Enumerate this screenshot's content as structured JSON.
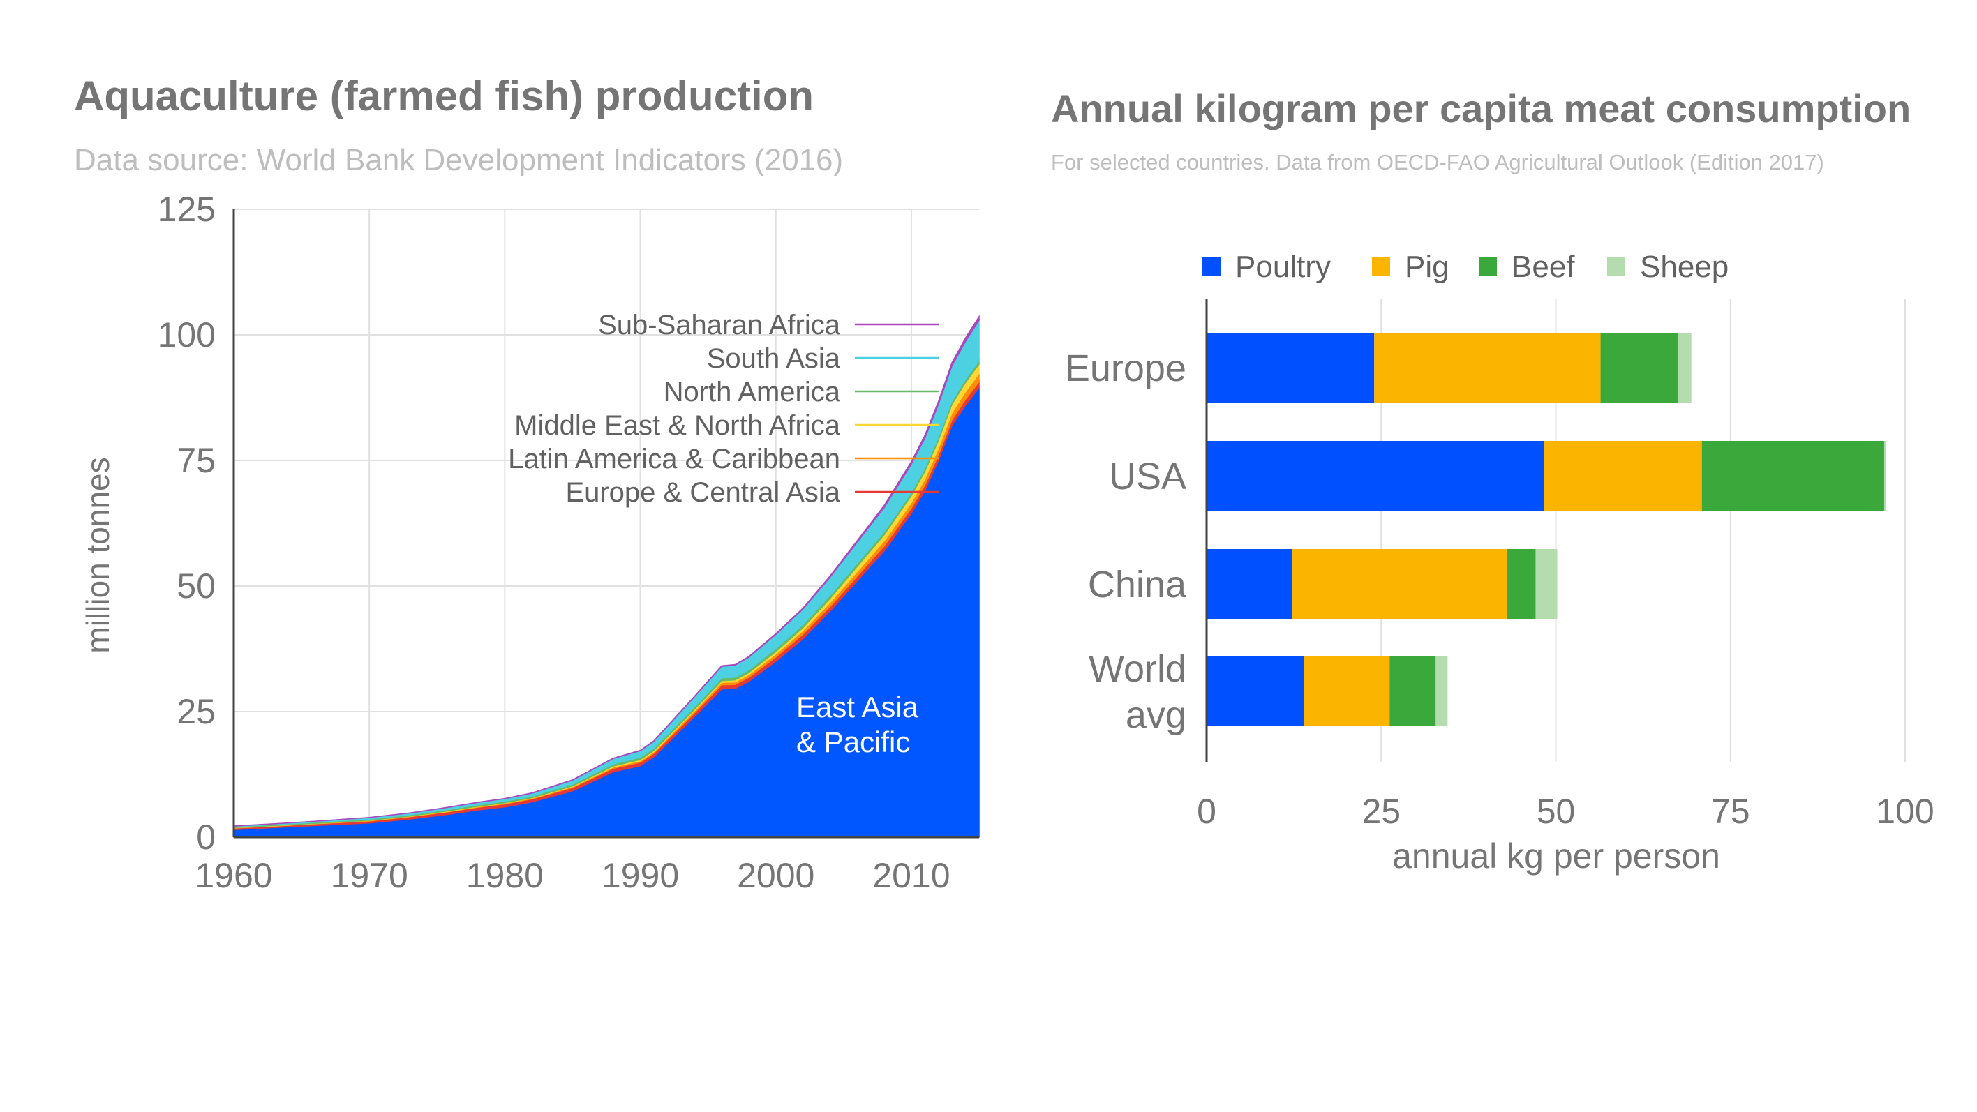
{
  "chart_data": [
    {
      "type": "area",
      "stacked": true,
      "title": "Aquaculture (farmed fish) production",
      "subtitle": "Data source: World Bank Development Indicators (2016)",
      "xlabel": "",
      "ylabel": "million tonnes",
      "xlim": [
        1960,
        2015
      ],
      "ylim": [
        0,
        125
      ],
      "x_ticks": [
        1960,
        1970,
        1980,
        1990,
        2000,
        2010
      ],
      "y_ticks": [
        0,
        25,
        50,
        75,
        100,
        125
      ],
      "x": [
        1960,
        1963,
        1966,
        1970,
        1973,
        1976,
        1978,
        1980,
        1982,
        1985,
        1988,
        1990,
        1991,
        1994,
        1996,
        1997,
        1998,
        2000,
        2002,
        2004,
        2006,
        2008,
        2010,
        2011,
        2012,
        2013,
        2014,
        2015
      ],
      "series": [
        {
          "name": "East Asia & Pacific",
          "color": "#0057ff",
          "label_lines": [
            "East Asia",
            "& Pacific"
          ],
          "values": [
            1.5,
            1.9,
            2.3,
            2.8,
            3.6,
            4.6,
            5.4,
            6.0,
            7.0,
            9.2,
            13.0,
            14.2,
            16.0,
            24.0,
            29.5,
            29.6,
            31.0,
            35.0,
            39.5,
            45.0,
            51.0,
            57.0,
            64.5,
            69.0,
            75.0,
            82.0,
            86.0,
            89.5
          ]
        },
        {
          "name": "Europe & Central Asia",
          "color": "#e53935",
          "values": [
            0.3,
            0.3,
            0.35,
            0.4,
            0.45,
            0.5,
            0.55,
            0.6,
            0.6,
            0.65,
            0.7,
            0.7,
            0.7,
            0.75,
            0.8,
            0.8,
            0.8,
            0.85,
            0.9,
            0.9,
            0.95,
            1.0,
            1.0,
            1.1,
            1.1,
            1.1,
            1.2,
            1.2
          ]
        },
        {
          "name": "Latin America & Caribbean",
          "color": "#ff8f00",
          "values": [
            0.05,
            0.05,
            0.05,
            0.1,
            0.1,
            0.1,
            0.1,
            0.15,
            0.15,
            0.2,
            0.25,
            0.3,
            0.3,
            0.4,
            0.5,
            0.5,
            0.55,
            0.6,
            0.7,
            0.8,
            0.9,
            1.0,
            1.1,
            1.2,
            1.3,
            1.4,
            1.5,
            1.6
          ]
        },
        {
          "name": "Middle East & North Africa",
          "color": "#fdd835",
          "values": [
            0.05,
            0.05,
            0.05,
            0.05,
            0.05,
            0.1,
            0.1,
            0.1,
            0.1,
            0.15,
            0.2,
            0.25,
            0.25,
            0.3,
            0.35,
            0.4,
            0.4,
            0.5,
            0.6,
            0.8,
            1.0,
            1.2,
            1.4,
            1.5,
            1.6,
            1.7,
            1.8,
            1.9
          ]
        },
        {
          "name": "North America",
          "color": "#66bb6a",
          "values": [
            0.2,
            0.2,
            0.2,
            0.25,
            0.25,
            0.3,
            0.3,
            0.3,
            0.3,
            0.35,
            0.4,
            0.45,
            0.45,
            0.5,
            0.55,
            0.55,
            0.55,
            0.6,
            0.6,
            0.65,
            0.65,
            0.65,
            0.65,
            0.65,
            0.65,
            0.65,
            0.7,
            0.7
          ]
        },
        {
          "name": "South Asia",
          "color": "#4dd0e1",
          "values": [
            0.1,
            0.15,
            0.2,
            0.3,
            0.35,
            0.4,
            0.45,
            0.5,
            0.6,
            0.8,
            1.1,
            1.3,
            1.4,
            2.0,
            2.3,
            2.4,
            2.5,
            2.8,
            3.1,
            3.6,
            4.2,
            4.8,
            5.6,
            6.0,
            6.5,
            7.0,
            7.5,
            8.0
          ]
        },
        {
          "name": "Sub-Saharan Africa",
          "color": "#ab47bc",
          "values": [
            0.02,
            0.02,
            0.02,
            0.03,
            0.03,
            0.04,
            0.04,
            0.05,
            0.05,
            0.06,
            0.07,
            0.08,
            0.08,
            0.1,
            0.12,
            0.13,
            0.14,
            0.16,
            0.2,
            0.25,
            0.3,
            0.4,
            0.5,
            0.55,
            0.6,
            0.65,
            0.7,
            0.75
          ]
        }
      ]
    },
    {
      "type": "bar",
      "orientation": "horizontal",
      "stacked": true,
      "title": "Annual kilogram per capita meat consumption",
      "subtitle": "For selected countries. Data from OECD-FAO Agricultural Outlook (Edition 2017)",
      "xlabel": "annual kg per person",
      "ylabel": "",
      "xlim": [
        0,
        100
      ],
      "x_ticks": [
        0,
        25,
        50,
        75,
        100
      ],
      "legend": "top",
      "categories": [
        "Europe",
        "USA",
        "China",
        "World avg"
      ],
      "category_lines": [
        [
          "Europe"
        ],
        [
          "USA"
        ],
        [
          "China"
        ],
        [
          "World",
          "avg"
        ]
      ],
      "series": [
        {
          "name": "Poultry",
          "color": "#0050ff",
          "values": [
            24,
            48.3,
            12.2,
            13.9
          ]
        },
        {
          "name": "Pig",
          "color": "#fbb400",
          "values": [
            32.4,
            22.6,
            30.8,
            12.3
          ]
        },
        {
          "name": "Beef",
          "color": "#3ba83b",
          "values": [
            11.1,
            26.1,
            4.1,
            6.6
          ]
        },
        {
          "name": "Sheep",
          "color": "#b5dcaf",
          "values": [
            1.9,
            0.3,
            3.1,
            1.7
          ]
        }
      ]
    }
  ]
}
